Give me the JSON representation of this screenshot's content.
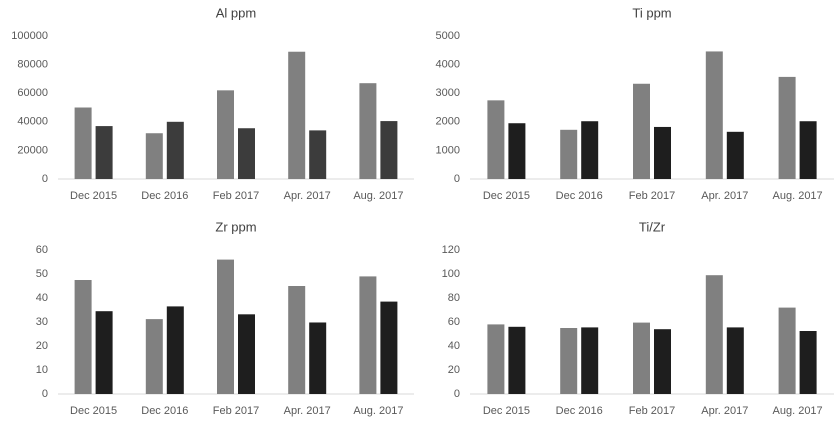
{
  "chart_data": [
    {
      "type": "bar",
      "title": "Al ppm",
      "categories": [
        "Dec 2015",
        "Dec 2016",
        "Feb 2017",
        "Apr. 2017",
        "Aug. 2017"
      ],
      "series": [
        {
          "color": "#808080",
          "values": [
            50000,
            32000,
            62000,
            89000,
            67000
          ]
        },
        {
          "color": "#3c3c3c",
          "values": [
            37000,
            40000,
            35500,
            34000,
            40500
          ]
        }
      ],
      "ylim": [
        0,
        100000
      ],
      "yticks": [
        0,
        20000,
        40000,
        60000,
        80000,
        100000
      ]
    },
    {
      "type": "bar",
      "title": "Ti ppm",
      "categories": [
        "Dec 2015",
        "Dec 2016",
        "Feb 2017",
        "Apr. 2017",
        "Aug. 2017"
      ],
      "series": [
        {
          "color": "#808080",
          "values": [
            2750,
            1720,
            3330,
            4460,
            3570
          ]
        },
        {
          "color": "#1e1e1e",
          "values": [
            1950,
            2020,
            1820,
            1650,
            2020
          ]
        }
      ],
      "ylim": [
        0,
        5000
      ],
      "yticks": [
        0,
        1000,
        2000,
        3000,
        4000,
        5000
      ]
    },
    {
      "type": "bar",
      "title": "Zr ppm",
      "categories": [
        "Dec 2015",
        "Dec 2016",
        "Feb 2017",
        "Apr. 2017",
        "Aug. 2017"
      ],
      "series": [
        {
          "color": "#808080",
          "values": [
            47.5,
            31.2,
            56,
            45,
            49
          ]
        },
        {
          "color": "#1e1e1e",
          "values": [
            34.5,
            36.5,
            33.2,
            29.8,
            38.5
          ]
        }
      ],
      "ylim": [
        0,
        60
      ],
      "yticks": [
        0,
        10,
        20,
        30,
        40,
        50,
        60
      ]
    },
    {
      "type": "bar",
      "title": "Ti/Zr",
      "categories": [
        "Dec 2015",
        "Dec 2016",
        "Feb 2017",
        "Apr. 2017",
        "Aug. 2017"
      ],
      "series": [
        {
          "color": "#808080",
          "values": [
            58,
            55,
            59.5,
            99,
            72
          ]
        },
        {
          "color": "#1e1e1e",
          "values": [
            56,
            55.5,
            54,
            55.5,
            52.5
          ]
        }
      ],
      "ylim": [
        0,
        120
      ],
      "yticks": [
        0,
        20,
        40,
        60,
        80,
        100,
        120
      ]
    }
  ]
}
